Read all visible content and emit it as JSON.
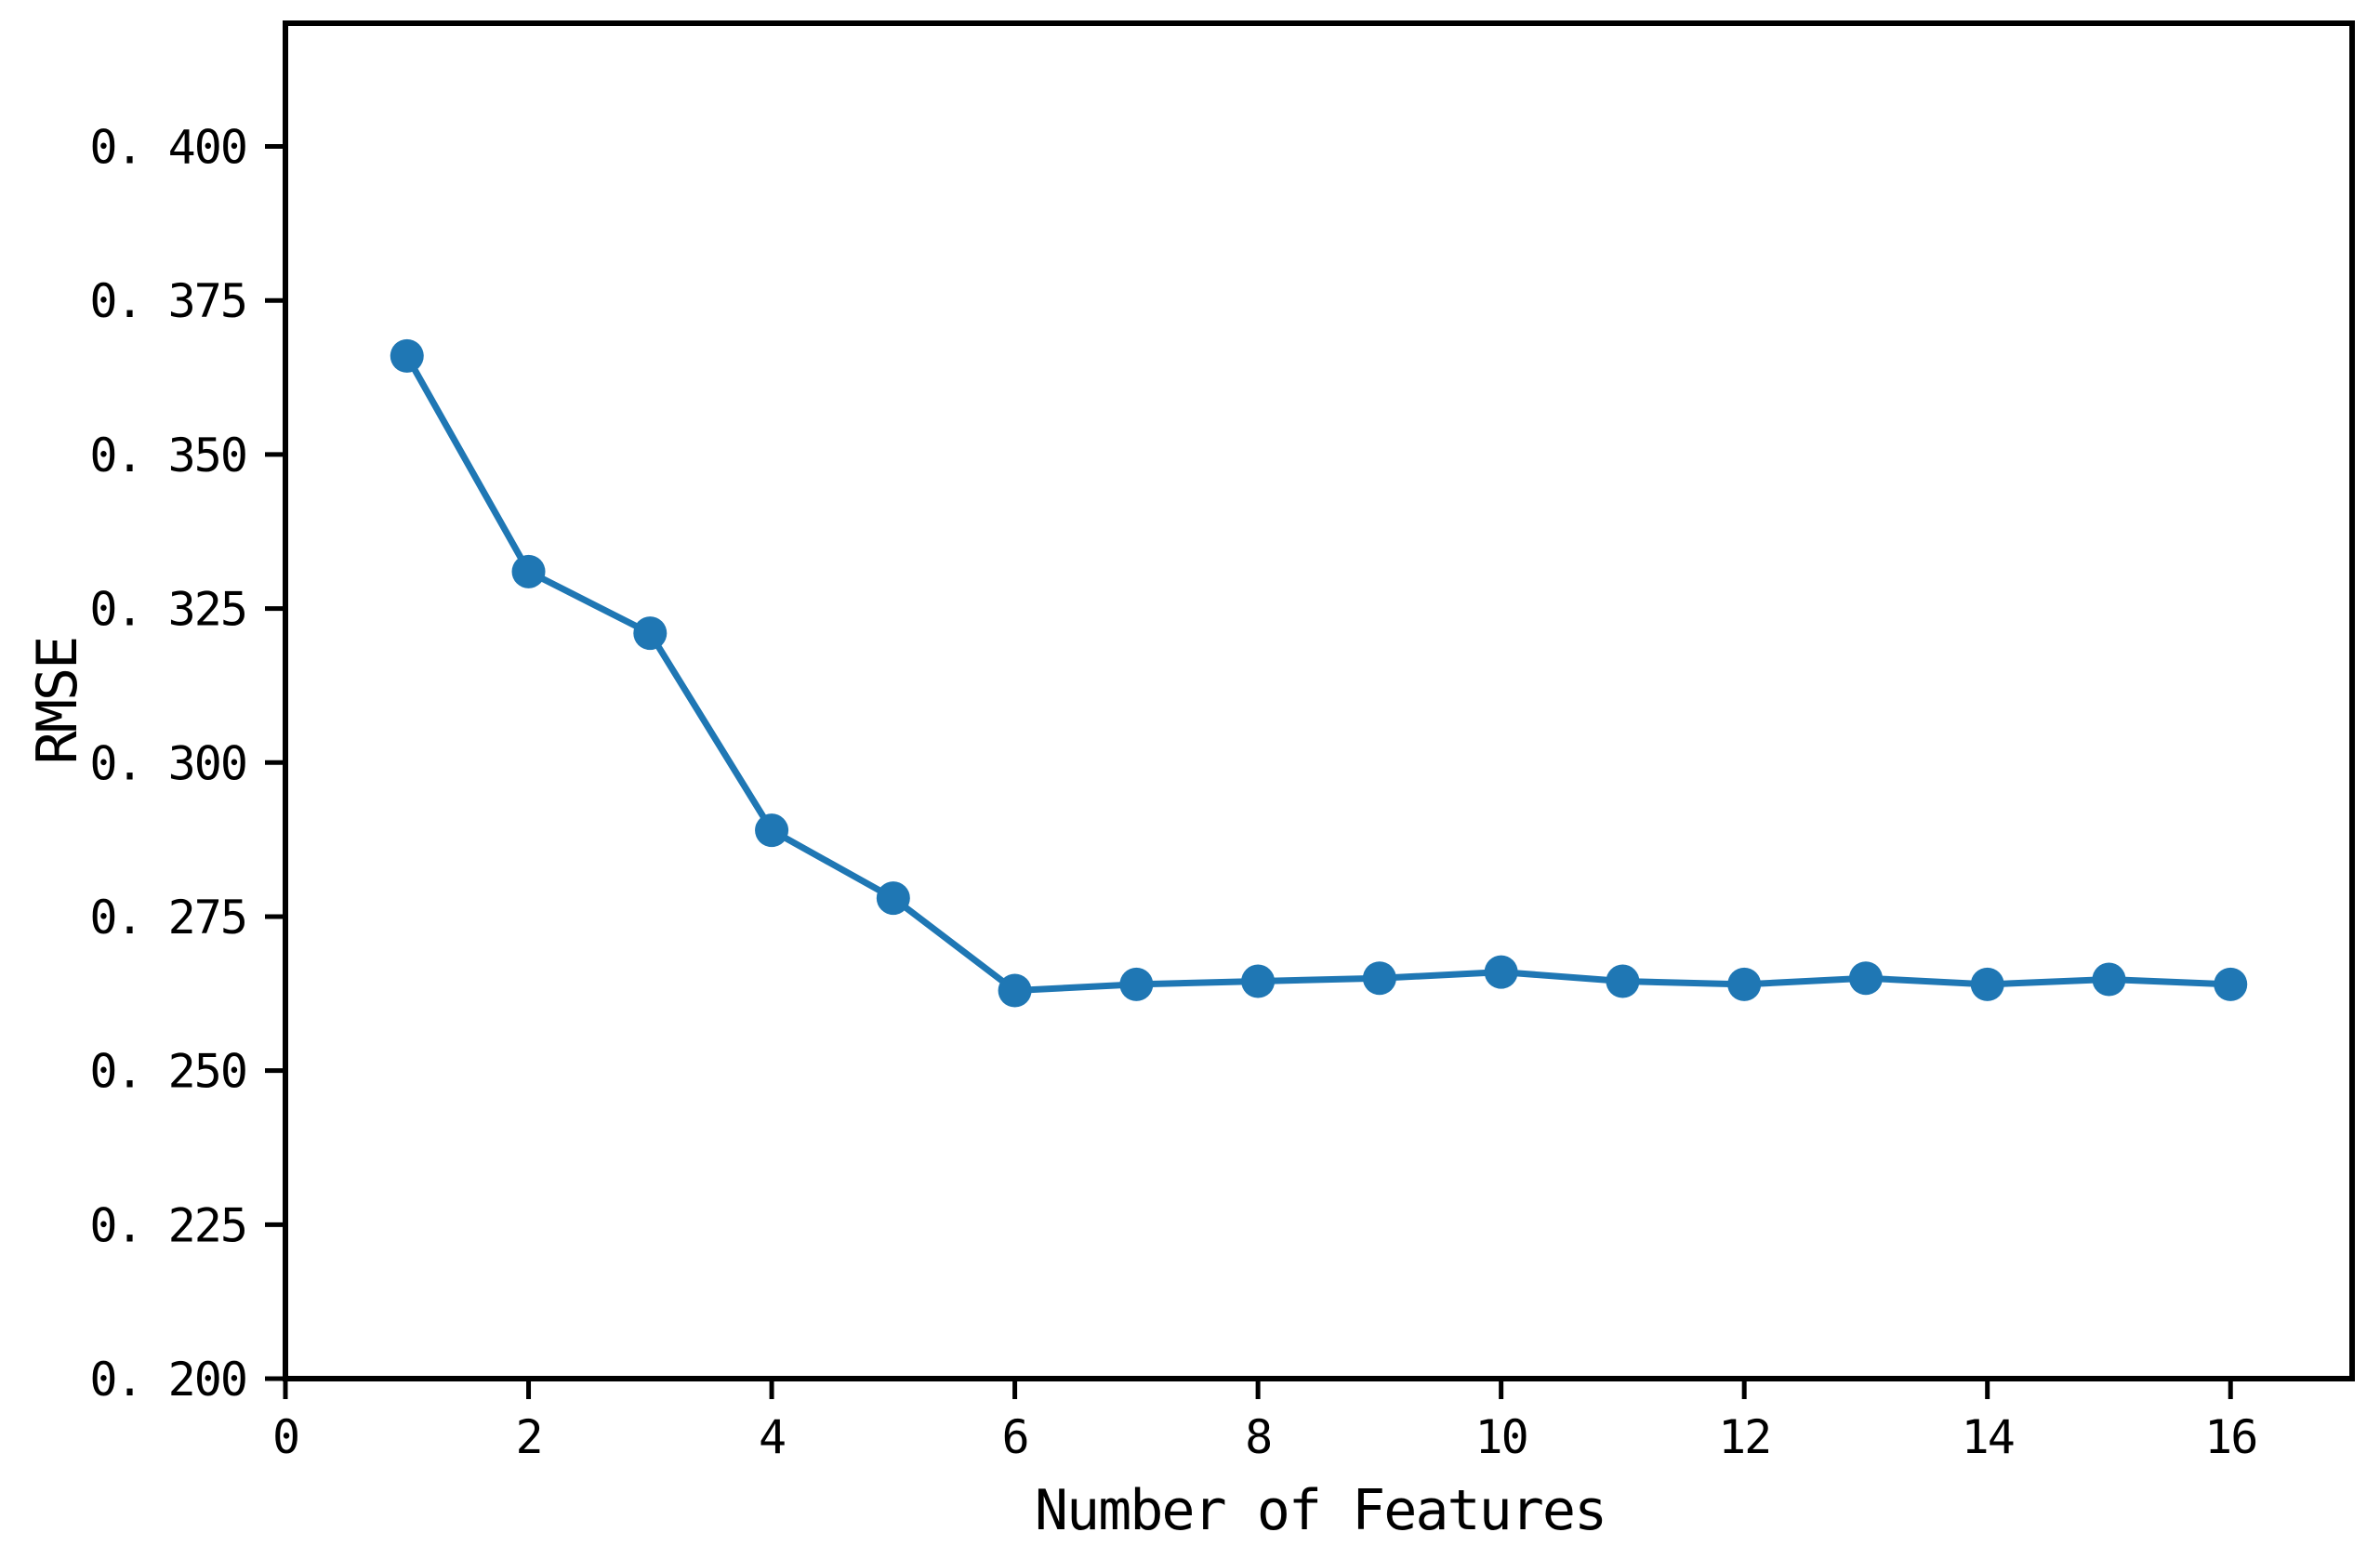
{
  "chart_data": {
    "type": "line",
    "title": "",
    "xlabel": "Number of Features",
    "ylabel": "RMSE",
    "x": [
      1,
      2,
      3,
      4,
      5,
      6,
      7,
      8,
      9,
      10,
      11,
      12,
      13,
      14,
      15,
      16
    ],
    "series": [
      {
        "name": "RMSE",
        "values": [
          0.366,
          0.331,
          0.321,
          0.289,
          0.278,
          0.263,
          0.264,
          0.2645,
          0.265,
          0.266,
          0.2645,
          0.264,
          0.265,
          0.264,
          0.2648,
          0.264
        ]
      }
    ],
    "xlim": [
      0,
      17
    ],
    "ylim": [
      0.2,
      0.42
    ],
    "x_ticks": [
      0,
      2,
      4,
      6,
      8,
      10,
      12,
      14,
      16
    ],
    "x_tick_labels": [
      "0",
      "2",
      "4",
      "6",
      "8",
      "10",
      "12",
      "14",
      "16"
    ],
    "y_ticks": [
      0.2,
      0.225,
      0.25,
      0.275,
      0.3,
      0.325,
      0.35,
      0.375,
      0.4
    ],
    "y_tick_labels": [
      "0. 200",
      "0. 225",
      "0. 250",
      "0. 275",
      "0. 300",
      "0. 325",
      "0. 350",
      "0. 375",
      "0. 400"
    ],
    "grid": false,
    "legend_position": "none",
    "line_color": "#1f77b4",
    "marker": "circle",
    "axis_color": "#000000",
    "background_color": "#ffffff"
  }
}
